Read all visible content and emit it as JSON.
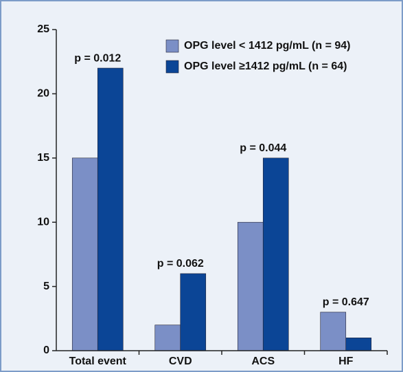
{
  "chart_data": {
    "type": "bar",
    "categories": [
      "Total event",
      "CVD",
      "ACS",
      "HF"
    ],
    "series": [
      {
        "name": "OPG level < 1412 pg/mL (n = 94)",
        "color": "#7b8fc6",
        "values": [
          15,
          2,
          10,
          3
        ]
      },
      {
        "name": "OPG level ≥1412 pg/mL (n = 64)",
        "color": "#0b4596",
        "values": [
          22,
          6,
          15,
          1
        ]
      }
    ],
    "annotations": [
      "p = 0.012",
      "p = 0.062",
      "p = 0.044",
      "p = 0.647"
    ],
    "ylim": [
      0,
      25
    ],
    "yticks": [
      0,
      5,
      10,
      15,
      20,
      25
    ],
    "grid": false,
    "legend": "top-right"
  }
}
